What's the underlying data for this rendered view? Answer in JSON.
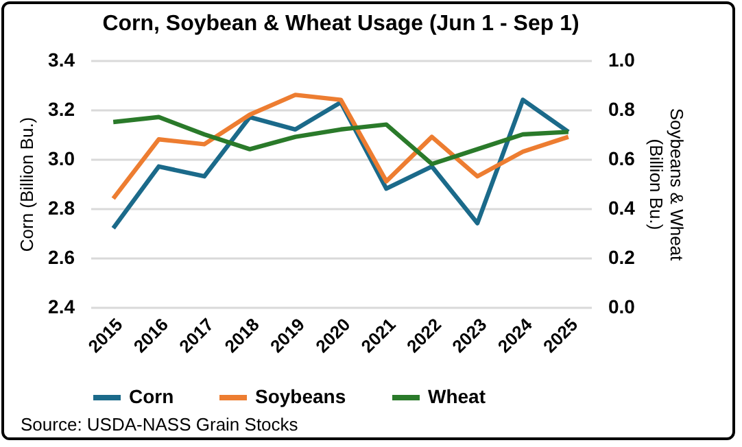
{
  "chart_data": {
    "type": "line",
    "title": "Corn, Soybean & Wheat Usage (Jun 1 - Sep 1)",
    "ylabel": "Corn (Billion Bu.)",
    "y2label": "Soybeans & Wheat (Billion Bu.)",
    "categories": [
      "2015",
      "2016",
      "2017",
      "2018",
      "2019",
      "2020",
      "2021",
      "2022",
      "2023",
      "2024",
      "2025"
    ],
    "series": [
      {
        "name": "Corn",
        "color": "#1b6a8a",
        "values": [
          2.72,
          2.97,
          2.93,
          3.17,
          3.12,
          3.23,
          2.88,
          2.97,
          2.74,
          3.24,
          3.11
        ]
      },
      {
        "name": "Soybeans",
        "color": "#ed7d31",
        "axis": "y2",
        "values": [
          0.44,
          0.68,
          0.66,
          0.78,
          0.86,
          0.84,
          0.51,
          0.69,
          0.53,
          0.63,
          0.69
        ]
      },
      {
        "name": "Wheat",
        "color": "#2a7a2a",
        "axis": "y2",
        "values": [
          0.75,
          0.77,
          0.7,
          0.64,
          0.69,
          0.72,
          0.74,
          0.58,
          0.64,
          0.7,
          0.71
        ]
      }
    ],
    "ylim": [
      2.4,
      3.4
    ],
    "yticks": [
      {
        "value": 2.4,
        "label": "2.4"
      },
      {
        "value": 2.6,
        "label": "2.6"
      },
      {
        "value": 2.8,
        "label": "2.8"
      },
      {
        "value": 3.0,
        "label": "3.0"
      },
      {
        "value": 3.2,
        "label": "3.2"
      },
      {
        "value": 3.4,
        "label": "3.4"
      }
    ],
    "y2lim": [
      0,
      1
    ],
    "y2ticks": [
      {
        "value": 0,
        "label": "0.0"
      },
      {
        "value": 0.2,
        "label": "0.2"
      },
      {
        "value": 0.4,
        "label": "0.4"
      },
      {
        "value": 0.6,
        "label": "0.6"
      },
      {
        "value": 0.8,
        "label": "0.8"
      },
      {
        "value": 1.0,
        "label": "1.0"
      }
    ],
    "grid": "y",
    "legend": "bottom",
    "marker": "none",
    "line_style": "solid",
    "annotations": [
      "Source: USDA-NASS Grain Stocks"
    ]
  }
}
